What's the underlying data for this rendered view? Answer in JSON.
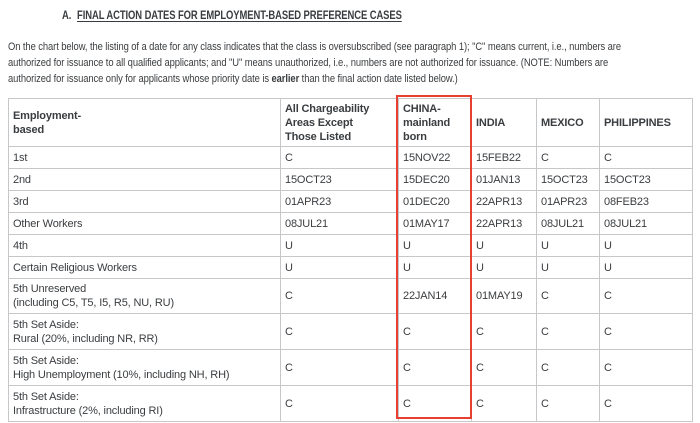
{
  "page": {
    "background": "#ffffff",
    "text_color": "#3a3d40"
  },
  "heading": {
    "prefix": "A.",
    "title": "FINAL ACTION DATES FOR EMPLOYMENT-BASED PREFERENCE CASES"
  },
  "intro": {
    "line1": "On the chart below, the listing of a date for any class indicates that the class is oversubscribed (see paragraph 1); \"C\" means current, i.e., numbers are",
    "line2": "authorized for issuance to all qualified applicants; and \"U\" means unauthorized, i.e., numbers are not authorized for issuance. (NOTE: Numbers are",
    "line3_before": "authorized for issuance only for applicants whose priority date is ",
    "line3_bold": "earlier",
    "line3_after": " than the final action date listed below.)"
  },
  "table": {
    "columns": [
      "Employment-\nbased",
      "All Chargeability\nAreas Except\nThose Listed",
      "CHINA-\nmainland\nborn",
      "INDIA",
      "MEXICO",
      "PHILIPPINES"
    ],
    "rows": [
      {
        "label": "1st",
        "values": [
          "C",
          "15NOV22",
          "15FEB22",
          "C",
          "C"
        ]
      },
      {
        "label": "2nd",
        "values": [
          "15OCT23",
          "15DEC20",
          "01JAN13",
          "15OCT23",
          "15OCT23"
        ]
      },
      {
        "label": "3rd",
        "values": [
          "01APR23",
          "01DEC20",
          "22APR13",
          "01APR23",
          "08FEB23"
        ]
      },
      {
        "label": "Other Workers",
        "values": [
          "08JUL21",
          "01MAY17",
          "22APR13",
          "08JUL21",
          "08JUL21"
        ]
      },
      {
        "label": "4th",
        "values": [
          "U",
          "U",
          "U",
          "U",
          "U"
        ]
      },
      {
        "label": "Certain Religious Workers",
        "values": [
          "U",
          "U",
          "U",
          "U",
          "U"
        ]
      },
      {
        "label": "5th Unreserved\n(including C5, T5, I5, R5, NU, RU)",
        "values": [
          "C",
          "22JAN14",
          "01MAY19",
          "C",
          "C"
        ]
      },
      {
        "label": "5th Set Aside:\nRural (20%, including NR, RR)",
        "values": [
          "C",
          "C",
          "C",
          "C",
          "C"
        ]
      },
      {
        "label": "5th Set Aside:\nHigh Unemployment (10%, including NH, RH)",
        "values": [
          "C",
          "C",
          "C",
          "C",
          "C"
        ]
      },
      {
        "label": "5th Set Aside:\nInfrastructure (2%, including RI)",
        "values": [
          "C",
          "C",
          "C",
          "C",
          "C"
        ]
      }
    ]
  },
  "annotation": {
    "highlight_color": "#e74033"
  }
}
